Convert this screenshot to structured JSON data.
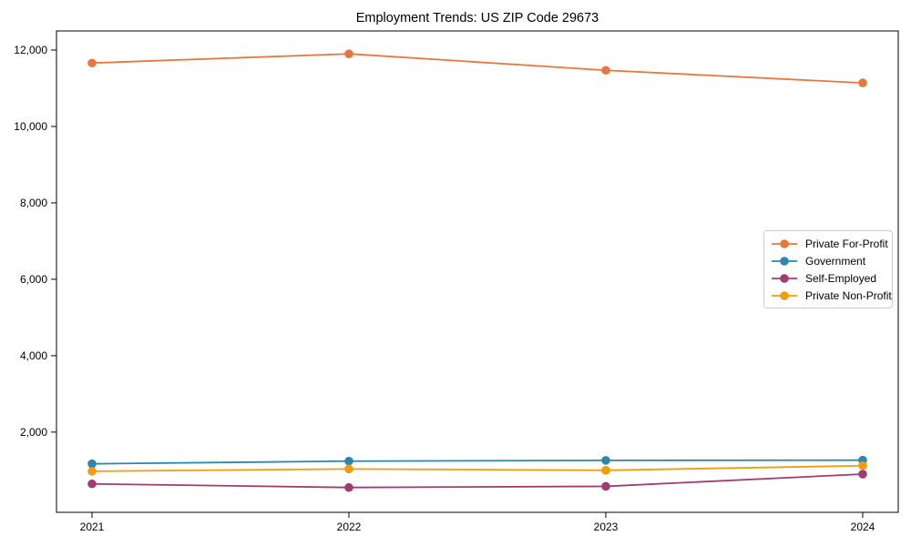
{
  "chart_data": {
    "type": "line",
    "title": "Employment Trends: US ZIP Code 29673",
    "xlabel": "",
    "ylabel": "",
    "categories": [
      "2021",
      "2022",
      "2023",
      "2024"
    ],
    "y_ticks": [
      {
        "value": 2000,
        "label": "2,000"
      },
      {
        "value": 4000,
        "label": "4,000"
      },
      {
        "value": 6000,
        "label": "6,000"
      },
      {
        "value": 8000,
        "label": "8,000"
      },
      {
        "value": 10000,
        "label": "10,000"
      },
      {
        "value": 12000,
        "label": "12,000"
      }
    ],
    "ylim": [
      -100,
      12500
    ],
    "grid": false,
    "legend_position": "center-right",
    "series": [
      {
        "name": "Private For-Profit",
        "color": "#E8773D",
        "values": [
          11660,
          11900,
          11470,
          11140
        ]
      },
      {
        "name": "Government",
        "color": "#2E86AB",
        "values": [
          1170,
          1240,
          1260,
          1265
        ]
      },
      {
        "name": "Self-Employed",
        "color": "#A23B72",
        "values": [
          645,
          550,
          580,
          900
        ]
      },
      {
        "name": "Private Non-Profit",
        "color": "#F29B0C",
        "values": [
          975,
          1035,
          1000,
          1120
        ]
      }
    ]
  }
}
